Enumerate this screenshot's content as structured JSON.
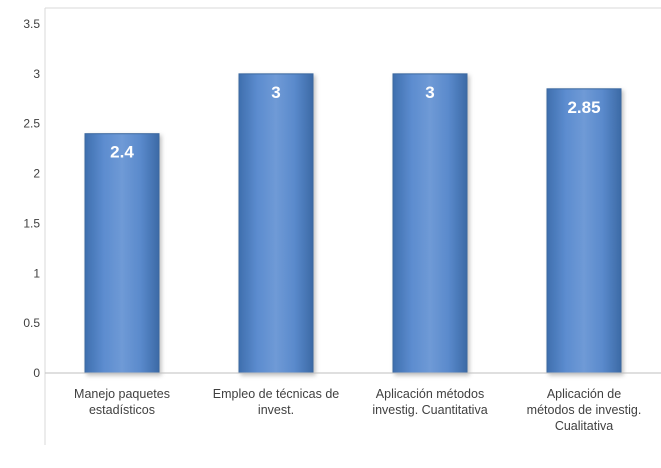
{
  "chart_data": {
    "type": "bar",
    "categories": [
      [
        "Manejo paquetes",
        "estadísticos"
      ],
      [
        "Empleo de técnicas de",
        "invest."
      ],
      [
        "Aplicación métodos",
        "investig. Cuantitativa"
      ],
      [
        "Aplicación de",
        "métodos de investig.",
        "Cualitativa"
      ]
    ],
    "values": [
      2.4,
      3,
      3,
      2.85
    ],
    "data_labels": [
      "2.4",
      "3",
      "3",
      "2.85"
    ],
    "yticks": [
      "0",
      "0.5",
      "1",
      "1.5",
      "2",
      "2.5",
      "3",
      "3.5"
    ],
    "ylim": [
      0,
      3.5
    ],
    "grid": false,
    "colors": {
      "bar_top": "#6f9ad6",
      "bar_mid": "#4f81c3",
      "bar_edge": "#3a679f",
      "axis": "#bfbfbf",
      "frame": "#d9d9d9"
    }
  }
}
